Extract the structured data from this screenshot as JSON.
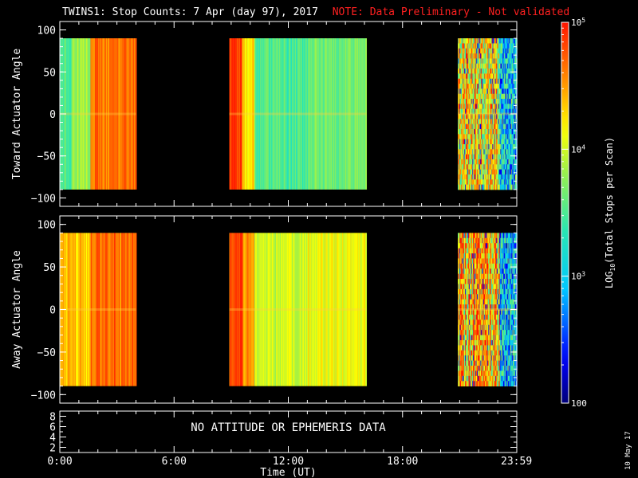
{
  "title": "TWINS1: Stop Counts:  7 Apr (day  97), 2017",
  "note": "NOTE: Data Preliminary - Not validated",
  "date_stamp": "10 May 17",
  "chart_data": [
    {
      "type": "heatmap",
      "panel": "top",
      "ylabel": "Toward Actuator Angle",
      "ylim": [
        -110,
        110
      ],
      "yticks": [
        100,
        50,
        0,
        -50,
        -100
      ],
      "data_range": [
        -90,
        90
      ],
      "x_segments_hours": [
        [
          0.0,
          4.0
        ],
        [
          8.9,
          16.1
        ],
        [
          20.9,
          24.0
        ]
      ]
    },
    {
      "type": "heatmap",
      "panel": "middle",
      "ylabel": "Away Actuator Angle",
      "ylim": [
        -110,
        110
      ],
      "yticks": [
        100,
        50,
        0,
        -50,
        -100
      ],
      "data_range": [
        -90,
        90
      ],
      "x_segments_hours": [
        [
          0.0,
          4.0
        ],
        [
          8.9,
          16.1
        ],
        [
          20.9,
          24.0
        ]
      ]
    },
    {
      "type": "line",
      "panel": "bottom",
      "ylim": [
        1,
        9
      ],
      "yticks": [
        8,
        6,
        4,
        2
      ],
      "message": "NO ATTITUDE OR EPHEMERIS DATA"
    }
  ],
  "xaxis": {
    "label": "Time (UT)",
    "range_hours": [
      0,
      24
    ],
    "ticks": [
      {
        "hour": 0,
        "label": "0:00"
      },
      {
        "hour": 6,
        "label": "6:00"
      },
      {
        "hour": 12,
        "label": "12:00"
      },
      {
        "hour": 18,
        "label": "18:00"
      },
      {
        "hour": 23.983,
        "label": "23:59"
      }
    ]
  },
  "colorbar": {
    "label": "LOG10(Total Stops per Scan)",
    "scale": "log",
    "range": [
      100,
      100000
    ],
    "ticks": [
      {
        "value": 100000,
        "label": "10^5"
      },
      {
        "value": 10000,
        "label": "10^4"
      },
      {
        "value": 1000,
        "label": "10^3"
      },
      {
        "value": 100,
        "label": "100"
      }
    ]
  }
}
